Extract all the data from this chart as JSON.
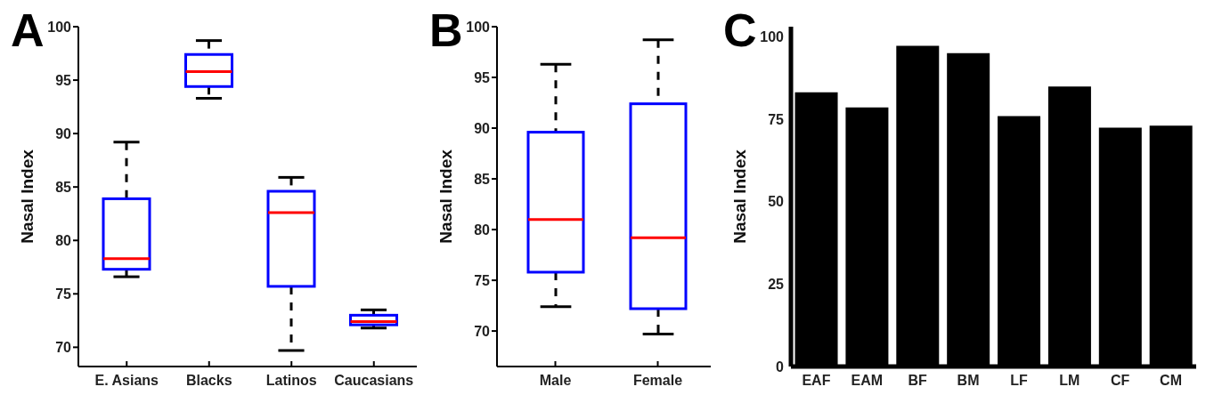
{
  "chart_data": [
    {
      "type": "box",
      "title": "A",
      "ylabel": "Nasal Index",
      "categories": [
        "E. Asians",
        "Blacks",
        "Latinos",
        "Caucasians"
      ],
      "color": "#0000ff",
      "ylim": [
        68.2,
        100
      ],
      "yticks": [
        70,
        75,
        80,
        85,
        90,
        95,
        100
      ],
      "boxes": [
        {
          "low": 76.6,
          "q1": 77.3,
          "median": 78.3,
          "q3": 83.9,
          "high": 89.2
        },
        {
          "low": 93.3,
          "q1": 94.4,
          "median": 95.8,
          "q3": 97.4,
          "high": 98.7
        },
        {
          "low": 69.7,
          "q1": 75.7,
          "median": 82.6,
          "q3": 84.6,
          "high": 85.9
        },
        {
          "low": 71.8,
          "q1": 72.1,
          "median": 72.4,
          "q3": 73.0,
          "high": 73.5
        }
      ]
    },
    {
      "type": "box",
      "title": "B",
      "ylabel": "Nasal Index",
      "categories": [
        "Male",
        "Female"
      ],
      "color": "#0000ff",
      "ylim": [
        66.5,
        100
      ],
      "yticks": [
        70,
        75,
        80,
        85,
        90,
        95,
        100
      ],
      "boxes": [
        {
          "low": 72.4,
          "q1": 75.8,
          "median": 81.0,
          "q3": 89.6,
          "high": 96.3
        },
        {
          "low": 69.7,
          "q1": 72.2,
          "median": 79.2,
          "q3": 92.4,
          "high": 98.7
        }
      ]
    },
    {
      "type": "bar",
      "title": "C",
      "ylabel": "Nasal Index",
      "categories": [
        "EAF",
        "EAM",
        "BF",
        "BM",
        "LF",
        "LM",
        "CF",
        "CM"
      ],
      "color": "#000000",
      "ylim": [
        0,
        103
      ],
      "yticks": [
        0,
        25,
        50,
        75,
        100
      ],
      "values": [
        83.1,
        78.5,
        97.2,
        95.0,
        75.9,
        84.9,
        72.4,
        73.0
      ]
    }
  ]
}
